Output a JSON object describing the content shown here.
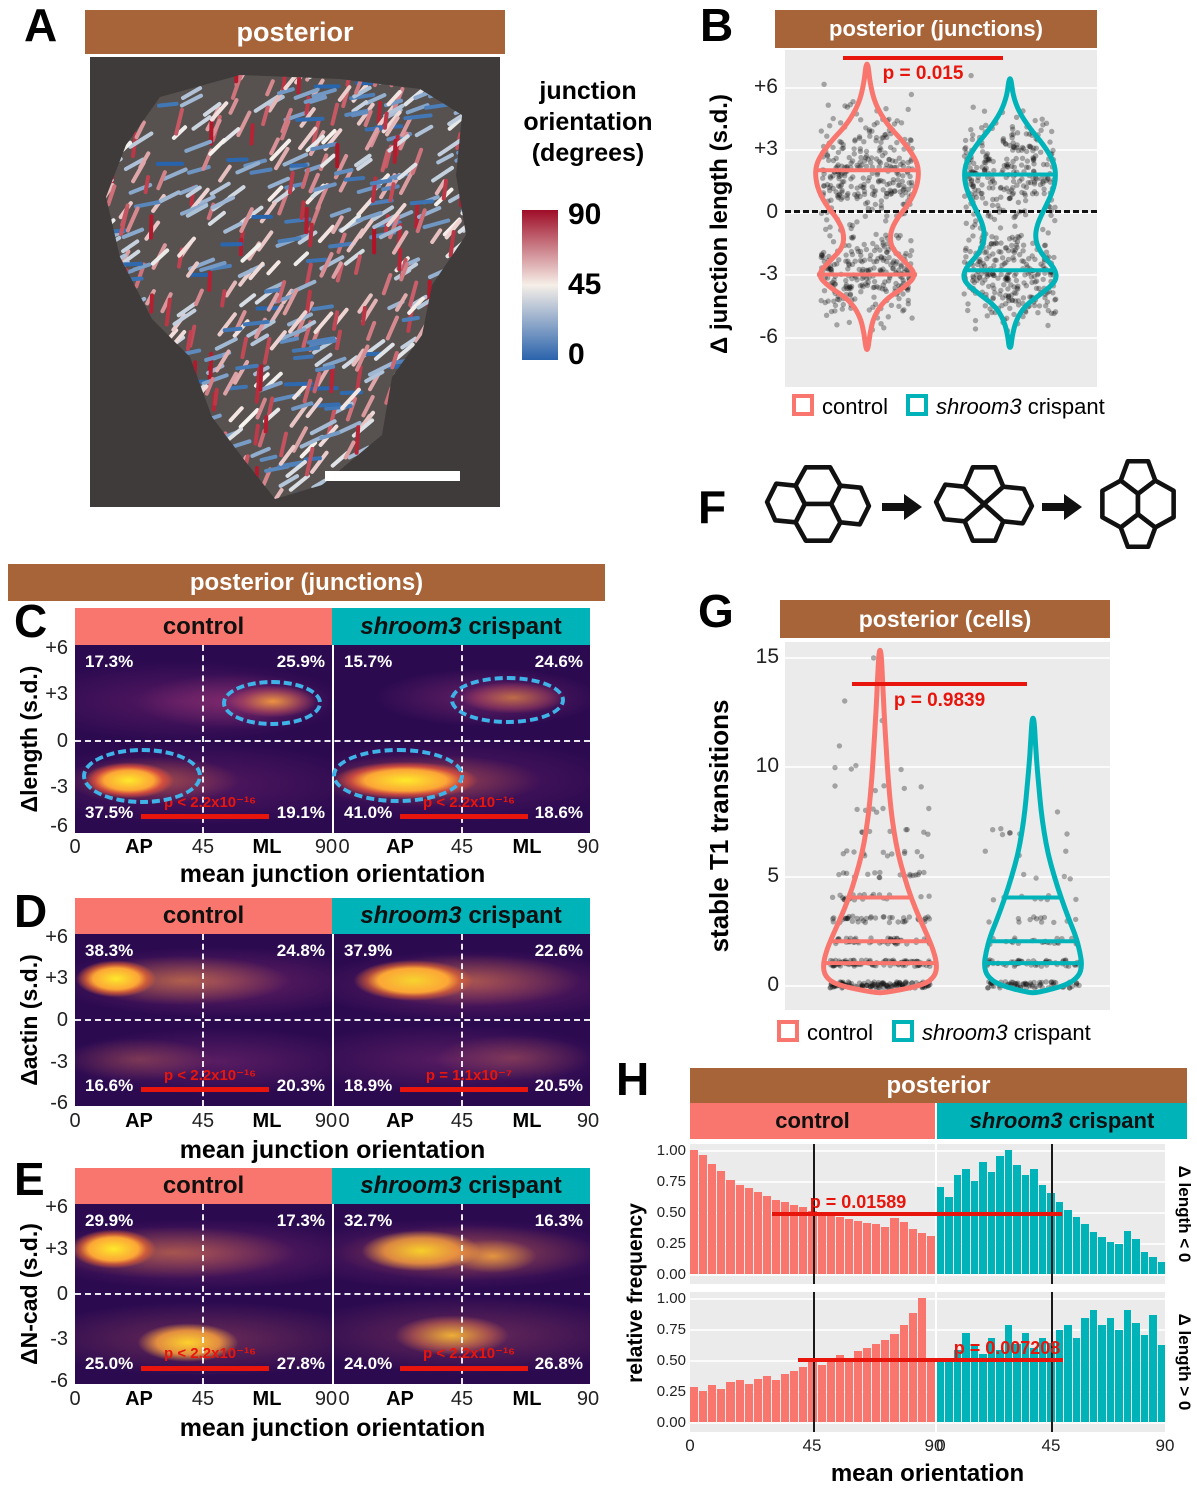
{
  "colors": {
    "brown": "#A86439",
    "salmon": "#F8766D",
    "teal": "#00B3B9",
    "red": "#E8150C",
    "heatmap_base": "#2B0A50",
    "panel_gray": "#EBEBEB",
    "tissue_bg": "#3E3B3A",
    "highlight_ellipse": "#3FB3E8"
  },
  "legend": {
    "control": "control",
    "crispant_italic": "shroom3",
    "crispant_rest": " crispant"
  },
  "panelA": {
    "letter": "A",
    "header": "posterior",
    "legend_line1": "junction",
    "legend_line2": "orientation",
    "legend_line3": "(degrees)",
    "colorbar_labels": [
      "90",
      "45",
      "0"
    ]
  },
  "panelB": {
    "letter": "B",
    "header": "posterior (junctions)",
    "ylabel": "Δ junction length (s.d.)",
    "yticks": [
      "+6",
      "+3",
      "0",
      "-3",
      "-6"
    ],
    "p_label": "p = 0.015"
  },
  "panelF": {
    "letter": "F"
  },
  "panelG": {
    "letter": "G",
    "header": "posterior (cells)",
    "ylabel": "stable T1 transitions",
    "yticks": [
      "15",
      "10",
      "5",
      "0"
    ],
    "p_label": "p = 0.9839"
  },
  "banner_junctions": "posterior (junctions)",
  "hm_axis": {
    "yticks": [
      "+6",
      "+3",
      "0",
      "-3",
      "-6"
    ],
    "xticks_left": [
      "0",
      "45",
      "90"
    ],
    "xticks_right": [
      "0",
      "45",
      "90"
    ],
    "ap": "AP",
    "ml": "ML",
    "xlabel": "mean junction orientation"
  },
  "panelC": {
    "letter": "C",
    "ylabel": "Δlength (s.d.)",
    "control": {
      "tl": "17.3%",
      "tr": "25.9%",
      "bl": "37.5%",
      "br": "19.1%",
      "p": "p < 2.2x10⁻¹⁶"
    },
    "crispant": {
      "tl": "15.7%",
      "tr": "24.6%",
      "bl": "41.0%",
      "br": "18.6%",
      "p": "p < 2.2x10⁻¹⁶"
    }
  },
  "panelD": {
    "letter": "D",
    "ylabel": "Δactin (s.d.)",
    "control": {
      "tl": "38.3%",
      "tr": "24.8%",
      "bl": "16.6%",
      "br": "20.3%",
      "p": "p < 2.2x10⁻¹⁶"
    },
    "crispant": {
      "tl": "37.9%",
      "tr": "22.6%",
      "bl": "18.9%",
      "br": "20.5%",
      "p": "p = 1.1x10⁻⁷"
    }
  },
  "panelE": {
    "letter": "E",
    "ylabel": "ΔN-cad (s.d.)",
    "control": {
      "tl": "29.9%",
      "tr": "17.3%",
      "bl": "25.0%",
      "br": "27.8%",
      "p": "p < 2.2x10⁻¹⁶"
    },
    "crispant": {
      "tl": "32.7%",
      "tr": "16.3%",
      "bl": "24.0%",
      "br": "26.8%",
      "p": "p < 2.2x10⁻¹⁶"
    }
  },
  "panelH": {
    "letter": "H",
    "header": "posterior",
    "ylabel": "relative frequency",
    "yticks": [
      "1.00",
      "0.75",
      "0.50",
      "0.25",
      "0.00"
    ],
    "xticks": [
      "0",
      "45",
      "90"
    ],
    "xlabel": "mean orientation",
    "row1": "Δ length < 0",
    "row2": "Δ length > 0",
    "p_top": "p = 0.01589",
    "p_bottom": "p = 0.007208"
  },
  "chart_data": [
    {
      "id": "A",
      "type": "image-map",
      "title": "posterior",
      "legend": "junction orientation (degrees)",
      "colorbar": {
        "min": 0,
        "mid": 45,
        "max": 90,
        "min_color": "#2A63AC",
        "mid_color": "#F6EFE8",
        "max_color": "#9E0D27"
      }
    },
    {
      "id": "B",
      "type": "violin",
      "title": "posterior (junctions)",
      "ylabel": "Δ junction length (s.d.)",
      "ylim": [
        -7,
        7
      ],
      "yticks": [
        6,
        3,
        0,
        -3,
        -6
      ],
      "groups": [
        "control",
        "shroom3 crispant"
      ],
      "p_value": 0.015,
      "summary": {
        "control": {
          "upper_mode": 2,
          "lower_mode": -3
        },
        "crispant": {
          "upper_mode": 2,
          "lower_mode": -3
        }
      }
    },
    {
      "id": "C",
      "type": "heatmap",
      "title": "posterior (junctions)",
      "xlabel": "mean junction orientation",
      "ylabel": "Δlength (s.d.)",
      "xlim": [
        0,
        90
      ],
      "ylim": [
        -6,
        6
      ],
      "facets": [
        "control",
        "shroom3 crispant"
      ],
      "quadrant_pct": {
        "control": {
          "top_AP": 17.3,
          "top_ML": 25.9,
          "bottom_AP": 37.5,
          "bottom_ML": 19.1
        },
        "crispant": {
          "top_AP": 15.7,
          "top_ML": 24.6,
          "bottom_AP": 41.0,
          "bottom_ML": 18.6
        }
      },
      "p_values": {
        "control": "< 2.2x10⁻¹⁶",
        "crispant": "< 2.2x10⁻¹⁶"
      }
    },
    {
      "id": "D",
      "type": "heatmap",
      "title": "posterior (junctions)",
      "xlabel": "mean junction orientation",
      "ylabel": "Δactin (s.d.)",
      "xlim": [
        0,
        90
      ],
      "ylim": [
        -6,
        6
      ],
      "facets": [
        "control",
        "shroom3 crispant"
      ],
      "quadrant_pct": {
        "control": {
          "top_AP": 38.3,
          "top_ML": 24.8,
          "bottom_AP": 16.6,
          "bottom_ML": 20.3
        },
        "crispant": {
          "top_AP": 37.9,
          "top_ML": 22.6,
          "bottom_AP": 18.9,
          "bottom_ML": 20.5
        }
      },
      "p_values": {
        "control": "< 2.2x10⁻¹⁶",
        "crispant": "= 1.1x10⁻⁷"
      }
    },
    {
      "id": "E",
      "type": "heatmap",
      "title": "posterior (junctions)",
      "xlabel": "mean junction orientation",
      "ylabel": "ΔN-cad (s.d.)",
      "xlim": [
        0,
        90
      ],
      "ylim": [
        -6,
        6
      ],
      "facets": [
        "control",
        "shroom3 crispant"
      ],
      "quadrant_pct": {
        "control": {
          "top_AP": 29.9,
          "top_ML": 17.3,
          "bottom_AP": 25.0,
          "bottom_ML": 27.8
        },
        "crispant": {
          "top_AP": 32.7,
          "top_ML": 16.3,
          "bottom_AP": 24.0,
          "bottom_ML": 26.8
        }
      },
      "p_values": {
        "control": "< 2.2x10⁻¹⁶",
        "crispant": "< 2.2x10⁻¹⁶"
      }
    },
    {
      "id": "G",
      "type": "violin",
      "title": "posterior (cells)",
      "ylabel": "stable T1 transitions",
      "ylim": [
        0,
        15
      ],
      "yticks": [
        15,
        10,
        5,
        0
      ],
      "groups": [
        "control",
        "shroom3 crispant"
      ],
      "p_value": 0.9839
    },
    {
      "id": "H",
      "type": "bar",
      "title": "posterior",
      "xlabel": "mean orientation",
      "ylabel": "relative frequency",
      "xlim": [
        0,
        90
      ],
      "bins": 27,
      "facet_cols": [
        "control",
        "shroom3 crispant"
      ],
      "facet_rows": [
        "Δ length < 0",
        "Δ length > 0"
      ],
      "p_values": {
        "neg": 0.01589,
        "pos": 0.007208
      },
      "hist": {
        "neg_control": [
          1.0,
          0.96,
          0.89,
          0.83,
          0.76,
          0.72,
          0.69,
          0.66,
          0.63,
          0.6,
          0.58,
          0.56,
          0.54,
          0.51,
          0.49,
          0.47,
          0.46,
          0.44,
          0.43,
          0.41,
          0.4,
          0.38,
          0.45,
          0.42,
          0.36,
          0.33,
          0.31
        ],
        "neg_crispant": [
          0.7,
          0.62,
          0.8,
          0.85,
          0.75,
          0.9,
          0.82,
          0.95,
          1.0,
          0.88,
          0.8,
          0.85,
          0.72,
          0.65,
          0.58,
          0.52,
          0.46,
          0.4,
          0.34,
          0.3,
          0.26,
          0.24,
          0.35,
          0.28,
          0.18,
          0.14,
          0.1
        ],
        "pos_control": [
          0.28,
          0.25,
          0.3,
          0.27,
          0.32,
          0.34,
          0.31,
          0.35,
          0.37,
          0.34,
          0.39,
          0.41,
          0.44,
          0.48,
          0.46,
          0.51,
          0.54,
          0.52,
          0.57,
          0.6,
          0.63,
          0.66,
          0.71,
          0.78,
          0.88,
          1.0,
          0.52
        ],
        "pos_crispant": [
          0.52,
          0.48,
          0.58,
          0.72,
          0.62,
          0.55,
          0.68,
          0.58,
          0.78,
          0.63,
          0.72,
          0.6,
          0.68,
          0.64,
          0.74,
          0.78,
          0.68,
          0.84,
          0.9,
          0.78,
          0.84,
          0.74,
          0.9,
          0.8,
          0.7,
          0.86,
          0.62
        ]
      }
    }
  ]
}
